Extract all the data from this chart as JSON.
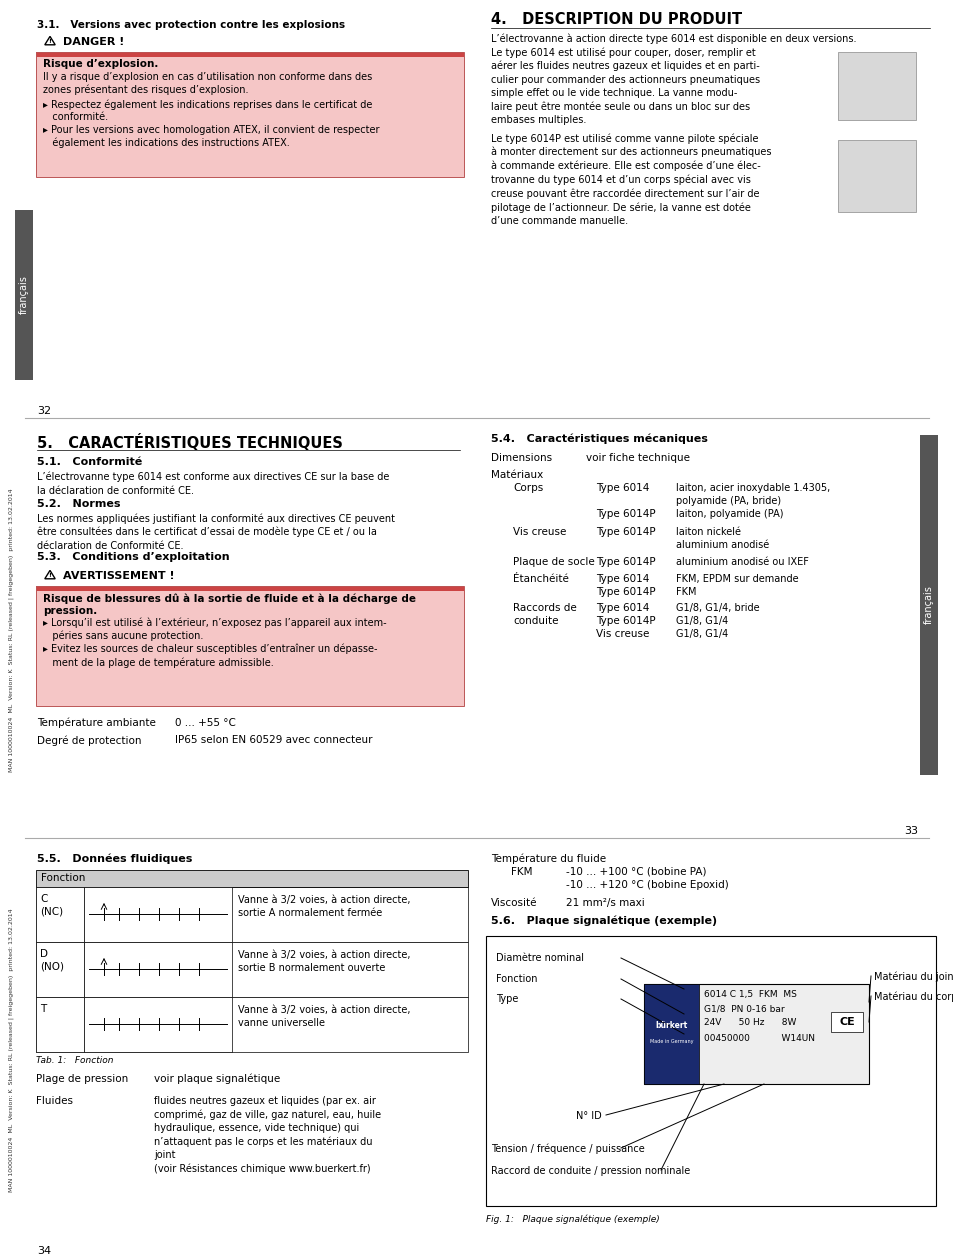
{
  "bg_color": "#ffffff",
  "page_width": 9.54,
  "page_height": 12.6,
  "dpi": 100,
  "section1": {
    "title": "3.1.   Versions avec protection contre les explosions",
    "danger_label": "DANGER !",
    "danger_box_color": "#f5c6c6",
    "danger_header_color": "#cc4444",
    "danger_bold": "Risque d’explosion.",
    "danger_text1": "Il y a risque d’explosion en cas d’utilisation non conforme dans des\nzones présentant des risques d’explosion.",
    "danger_bullet1": "▸ Respectez également les indications reprises dans le certificat de\n   conformité.",
    "danger_bullet2": "▸ Pour les versions avec homologation ATEX, il convient de respecter\n   également les indications des instructions ATEX."
  },
  "section4": {
    "title": "4.   DESCRIPTION DU PRODUIT",
    "intro": "L’électrovanne à action directe type 6014 est disponible en deux versions.",
    "para1": "Le type 6014 est utilisé pour couper, doser, remplir et\naérer les fluides neutres gazeux et liquides et en parti-\nculier pour commander des actionneurs pneumatiques\nsimple effet ou le vide technique. La vanne modu-\nlaire peut être montée seule ou dans un bloc sur des\nembases multiples.",
    "para2": "Le type 6014P est utilisé comme vanne pilote spéciale\nà monter directement sur des actionneurs pneumatiques\nà commande extérieure. Elle est composée d’une élec-\ntrovanne du type 6014 et d’un corps spécial avec vis\ncreuse pouvant être raccordée directement sur l’air de\npilotage de l’actionneur. De série, la vanne est dotée\nd’une commande manuelle."
  },
  "page1_num": "32",
  "section5": {
    "title": "5.   CARACTÉRISTIQUES TECHNIQUES",
    "s51_title": "5.1.   Conformité",
    "s51_text": "L’électrovanne type 6014 est conforme aux directives CE sur la base de\nla déclaration de conformité CE.",
    "s52_title": "5.2.   Normes",
    "s52_text": "Les normes appliquées justifiant la conformité aux directives CE peuvent\nêtre consultées dans le certificat d’essai de modèle type CE et / ou la\ndéclaration de Conformité CE.",
    "s53_title": "5.3.   Conditions d’exploitation",
    "avert_label": "AVERTISSEMENT !",
    "avert_box_color": "#f5c6c6",
    "avert_header_color": "#cc4444",
    "avert_bold": "Risque de blessures dû à la sortie de fluide et à la décharge de\npression.",
    "avert_bullet1": "▸ Lorsqu’il est utilisé à l’extérieur, n’exposez pas l’appareil aux intem-\n   péries sans aucune protection.",
    "avert_bullet2": "▸ Evitez les sources de chaleur susceptibles d’entraîner un dépasse-\n   ment de la plage de température admissible.",
    "temp_label": "Température ambiante",
    "temp_value": "0 ... +55 °C",
    "protect_label": "Degré de protection",
    "protect_value": "IP65 selon EN 60529 avec connecteur"
  },
  "section54": {
    "title": "5.4.   Caractéristiques mécaniques",
    "dim_label": "Dimensions",
    "dim_value": "voir fiche technique",
    "mat_label": "Matériaux",
    "corps_label": "Corps",
    "corps_type1": "Type 6014",
    "corps_val1": "laiton, acier inoxydable 1.4305,",
    "corps_val1b": "polyamide (PA, bride)",
    "corps_type2": "Type 6014P",
    "corps_val2": "laiton, polyamide (PA)",
    "vis_label": "Vis creuse",
    "vis_type": "Type 6014P",
    "vis_val1": "laiton nickelé",
    "vis_val2": "aluminium anodisé",
    "plaque_label": "Plaque de socle",
    "plaque_type": "Type 6014P",
    "plaque_val": "aluminium anodisé ou IXEF",
    "etanch_label": "Étanchéité",
    "etanch_type1": "Type 6014",
    "etanch_val1": "FKM, EPDM sur demande",
    "etanch_type2": "Type 6014P",
    "etanch_val2": "FKM",
    "raccords_label": "Raccords de",
    "raccords_label2": "conduite",
    "raccords_type1": "Type 6014",
    "raccords_val1": "G1/8, G1/4, bride",
    "raccords_type2": "Type 6014P",
    "raccords_val2": "G1/8, G1/4",
    "raccords_type3": "Vis creuse",
    "raccords_val3": "G1/8, G1/4"
  },
  "page2_num": "33",
  "section55": {
    "title": "5.5.   Données fluidiques",
    "table_header": "Fonction",
    "row1_label": "C\n(NC)",
    "row1_desc": "Vanne à 3/2 voies, à action directe,\nsortie A normalement fermée",
    "row2_label": "D\n(NO)",
    "row2_desc": "Vanne à 3/2 voies, à action directe,\nsortie B normalement ouverte",
    "row3_label": "T",
    "row3_desc": "Vanne à 3/2 voies, à action directe,\nvanne universelle",
    "tab_caption": "Tab. 1:   Fonction",
    "pression_label": "Plage de pression",
    "pression_value": "voir plaque signalétique",
    "fluides_label": "Fluides",
    "fluides_value": "fluides neutres gazeux et liquides (par ex. air\ncomprimé, gaz de ville, gaz naturel, eau, huile\nhydraulique, essence, vide technique) qui\nn’attaquent pas le corps et les matériaux du\njoint\n(voir Résistances chimique www.buerkert.fr)"
  },
  "section55_right": {
    "temp_fluide_label": "Température du fluide",
    "fkm_label": "FKM",
    "fkm_val1": "-10 ... +100 °C (bobine PA)",
    "fkm_val2": "-10 ... +120 °C (bobine Epoxid)",
    "visco_label": "Viscosité",
    "visco_value": "21 mm²/s maxi"
  },
  "section56": {
    "title": "5.6.   Plaque signalétique (exemple)",
    "label1": "Diamètre nominal",
    "label2": "Fonction",
    "label3": "Type",
    "label4": "Matériau du joint",
    "label5": "Matériau du corps",
    "plate_line1": "6014 C 1,5  FKM  MS",
    "plate_line2": "G1/8  PN 0-16 bar",
    "plate_line3": "24V      50 Hz      8W",
    "plate_line5": "00450000           W14UN",
    "label6": "N° ID",
    "label7": "Tension / fréquence / puissance",
    "label8": "Raccord de conduite / pression nominale",
    "fig_caption": "Fig. 1:   Plaque signalétique (exemple)"
  },
  "page3_num": "34",
  "sidebar_text": "français",
  "sidebar2_text": "français",
  "sidebar3_text": "français",
  "margin_text": "MAN 1000010024  ML  Version: K  Status: RL (released | freigegeben)  printed: 13.02.2014",
  "gray_sidebar_color": "#555555"
}
